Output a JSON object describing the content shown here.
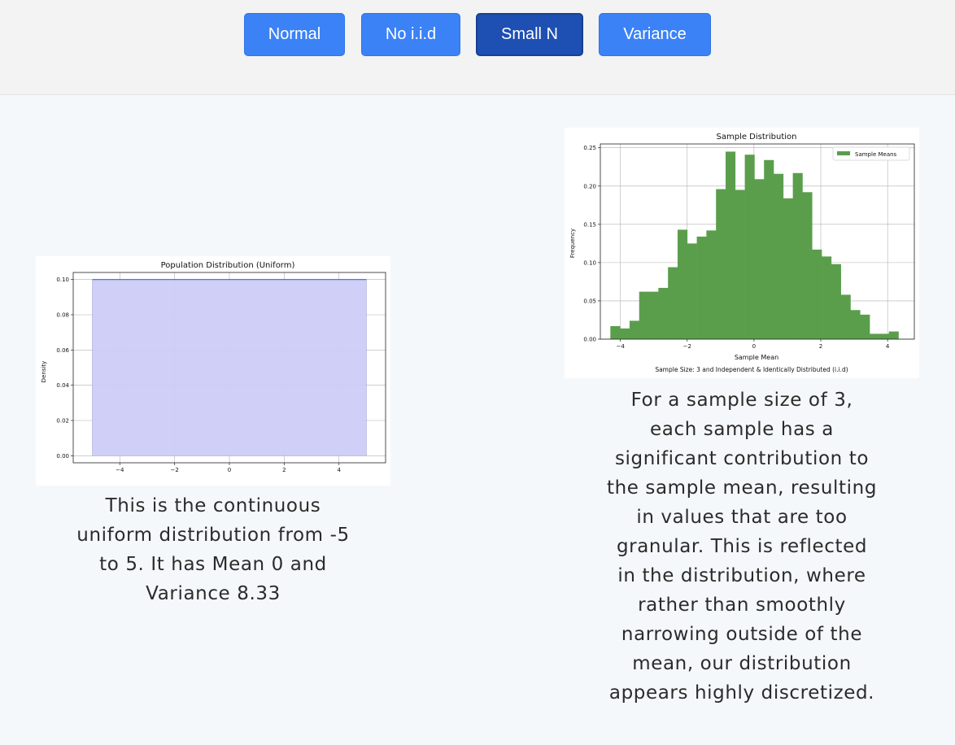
{
  "nav": {
    "buttons": [
      {
        "label": "Normal",
        "active": false
      },
      {
        "label": "No i.i.d",
        "active": false
      },
      {
        "label": "Small N",
        "active": true
      },
      {
        "label": "Variance",
        "active": false
      }
    ]
  },
  "colors": {
    "button": "#3b82f6",
    "button_active": "#1e4fb2",
    "population_fill": "#ccccf8",
    "population_line": "#3a73b8",
    "sample_bars": "#5a9e4c"
  },
  "population": {
    "caption": "This is the continuous uniform distribution from -5 to 5. It has Mean 0 and Variance 8.33"
  },
  "sample": {
    "caption": "For a sample size of 3, each sample has a significant contribution to the sample mean, resulting in values that are too granular. This is reflected in the distribution, where rather than smoothly narrowing outside of the mean, our distribution appears highly discretized."
  },
  "chart_data": [
    {
      "type": "area",
      "title": "Population Distribution (Uniform)",
      "xlabel": "",
      "ylabel": "Density",
      "xlim": [
        -5.7,
        5.7
      ],
      "ylim": [
        -0.004,
        0.104
      ],
      "x_ticks": [
        -4,
        -2,
        0,
        2,
        4
      ],
      "x_tick_labels": [
        "−4",
        "−2",
        "0",
        "2",
        "4"
      ],
      "y_ticks": [
        0.0,
        0.02,
        0.04,
        0.06,
        0.08,
        0.1
      ],
      "y_tick_labels": [
        "0.00",
        "0.02",
        "0.04",
        "0.06",
        "0.08",
        "0.10"
      ],
      "x": [
        -5,
        5
      ],
      "y": [
        0.1,
        0.1
      ],
      "grid": true
    },
    {
      "type": "bar",
      "title": "Sample Distribution",
      "xlabel": "Sample Mean",
      "ylabel": "Frequency",
      "subtitle": "Sample Size: 3 and Independent & Identically Distributed (i.i.d)",
      "legend": "Sample Means",
      "legend_position": "top-right",
      "xlim": [
        -4.6,
        4.8
      ],
      "ylim": [
        0,
        0.255
      ],
      "x_ticks": [
        -4,
        -2,
        0,
        2,
        4
      ],
      "x_tick_labels": [
        "−4",
        "−2",
        "0",
        "2",
        "4"
      ],
      "y_ticks": [
        0.0,
        0.05,
        0.1,
        0.15,
        0.2,
        0.25
      ],
      "y_tick_labels": [
        "0.00",
        "0.05",
        "0.10",
        "0.15",
        "0.20",
        "0.25"
      ],
      "grid": true,
      "bin_start": -4.3,
      "bin_width": 0.2875,
      "values": [
        0.017,
        0.014,
        0.024,
        0.062,
        0.062,
        0.067,
        0.094,
        0.143,
        0.125,
        0.134,
        0.142,
        0.196,
        0.245,
        0.195,
        0.241,
        0.209,
        0.234,
        0.216,
        0.184,
        0.217,
        0.192,
        0.117,
        0.108,
        0.098,
        0.058,
        0.038,
        0.032,
        0.007,
        0.007,
        0.01
      ]
    }
  ]
}
